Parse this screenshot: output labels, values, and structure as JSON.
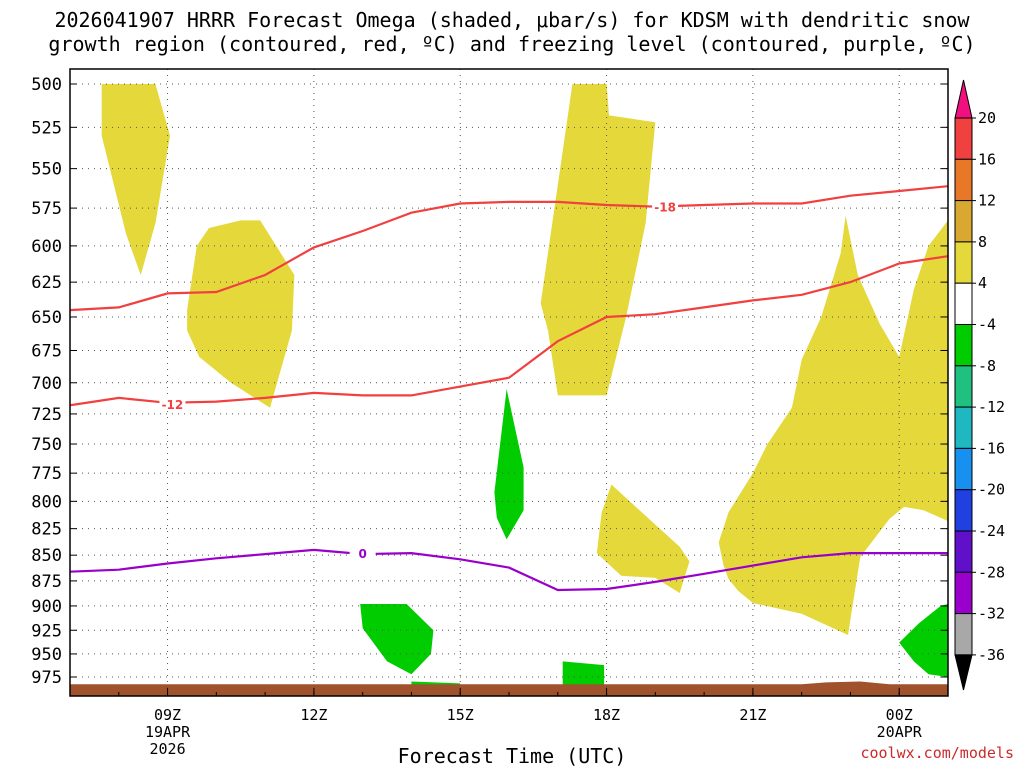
{
  "title": {
    "line1": "2026041907 HRRR Forecast Omega (shaded, μbar/s) for KDSM with dendritic snow",
    "line2": "growth region (contoured, red, ºC) and freezing level (contoured, purple, ºC)"
  },
  "credit": "coolwx.com/models",
  "colors": {
    "omega_pos": "#e5d83a",
    "omega_neg": "#00cc00",
    "dgz": "#f04040",
    "freezing": "#9900cc",
    "ground": "#a0522d"
  },
  "chart_data": {
    "type": "time-height",
    "xlabel": "Forecast Time (UTC)",
    "ylabel": "",
    "xlim": [
      7,
      25
    ],
    "ylim": [
      500,
      990
    ],
    "y_ticks": [
      500,
      525,
      550,
      575,
      600,
      625,
      650,
      675,
      700,
      725,
      750,
      775,
      800,
      825,
      850,
      875,
      900,
      925,
      950,
      975
    ],
    "y_tick_labels": [
      "500",
      "525",
      "550",
      "575",
      "600",
      "625",
      "650",
      "675",
      "700",
      "725",
      "750",
      "775",
      "800",
      "825",
      "850",
      "875",
      "900",
      "925",
      "950",
      "975"
    ],
    "x_ticks": [
      {
        "x": 9,
        "lines": [
          "09Z",
          "19APR",
          "2026"
        ]
      },
      {
        "x": 12,
        "lines": [
          "12Z"
        ]
      },
      {
        "x": 15,
        "lines": [
          "15Z"
        ]
      },
      {
        "x": 18,
        "lines": [
          "18Z"
        ]
      },
      {
        "x": 21,
        "lines": [
          "21Z"
        ]
      },
      {
        "x": 24,
        "lines": [
          "00Z",
          "20APR"
        ]
      }
    ],
    "grid": true,
    "contours": [
      {
        "label": "-12",
        "label_at": [
          9.1,
          717
        ],
        "points": [
          [
            7,
            718
          ],
          [
            8,
            712
          ],
          [
            9,
            716
          ],
          [
            10,
            715
          ],
          [
            11,
            712
          ],
          [
            12,
            708
          ],
          [
            13,
            710
          ],
          [
            14,
            710
          ],
          [
            15,
            703
          ],
          [
            16,
            696
          ],
          [
            17,
            668
          ],
          [
            18,
            650
          ],
          [
            19,
            648
          ],
          [
            20,
            643
          ],
          [
            21,
            638
          ],
          [
            22,
            634
          ],
          [
            23,
            625
          ],
          [
            24,
            612
          ],
          [
            25,
            607
          ]
        ]
      },
      {
        "label": "-18",
        "label_at": [
          19.2,
          574
        ],
        "points": [
          [
            7,
            645
          ],
          [
            8,
            643
          ],
          [
            9,
            633
          ],
          [
            10,
            632
          ],
          [
            11,
            620
          ],
          [
            12,
            601
          ],
          [
            13,
            590
          ],
          [
            14,
            578
          ],
          [
            15,
            572
          ],
          [
            16,
            571
          ],
          [
            17,
            571
          ],
          [
            18,
            573
          ],
          [
            19,
            574
          ],
          [
            20,
            573
          ],
          [
            21,
            572
          ],
          [
            22,
            572
          ],
          [
            23,
            567
          ],
          [
            24,
            564
          ],
          [
            25,
            561
          ]
        ]
      },
      {
        "label": "0",
        "label_at": [
          13.0,
          848
        ],
        "points": [
          [
            7,
            866
          ],
          [
            8,
            864
          ],
          [
            9,
            858
          ],
          [
            10,
            853
          ],
          [
            11,
            849
          ],
          [
            12,
            845
          ],
          [
            13,
            849
          ],
          [
            14,
            848
          ],
          [
            15,
            854
          ],
          [
            16,
            862
          ],
          [
            17,
            884
          ],
          [
            18,
            883
          ],
          [
            19,
            876
          ],
          [
            20,
            868
          ],
          [
            21,
            860
          ],
          [
            22,
            852
          ],
          [
            23,
            848
          ],
          [
            24,
            848
          ],
          [
            25,
            848
          ]
        ]
      }
    ],
    "omega_regions": [
      {
        "sign": "positive",
        "points": [
          [
            7.65,
            500
          ],
          [
            8.75,
            500
          ],
          [
            9.05,
            530
          ],
          [
            8.75,
            585
          ],
          [
            8.45,
            620
          ],
          [
            8.15,
            592
          ],
          [
            7.65,
            530
          ]
        ]
      },
      {
        "sign": "positive",
        "points": [
          [
            9.4,
            645
          ],
          [
            9.6,
            600
          ],
          [
            9.85,
            588
          ],
          [
            10.5,
            583
          ],
          [
            10.9,
            583
          ],
          [
            11.6,
            620
          ],
          [
            11.55,
            660
          ],
          [
            11.1,
            720
          ],
          [
            10.3,
            700
          ],
          [
            9.65,
            680
          ],
          [
            9.4,
            660
          ]
        ]
      },
      {
        "sign": "positive",
        "points": [
          [
            16.65,
            640
          ],
          [
            17.3,
            500
          ],
          [
            18.0,
            500
          ],
          [
            18.05,
            518
          ],
          [
            19.0,
            522
          ],
          [
            18.8,
            585
          ],
          [
            18.4,
            650
          ],
          [
            18.0,
            710
          ],
          [
            17.0,
            710
          ],
          [
            16.8,
            660
          ]
        ]
      },
      {
        "sign": "positive",
        "points": [
          [
            17.8,
            848
          ],
          [
            17.9,
            810
          ],
          [
            18.1,
            785
          ],
          [
            18.6,
            805
          ],
          [
            19.5,
            842
          ],
          [
            19.7,
            856
          ],
          [
            19.5,
            887
          ],
          [
            19.0,
            872
          ],
          [
            18.3,
            870
          ]
        ]
      },
      {
        "sign": "positive",
        "points": [
          [
            20.3,
            838
          ],
          [
            20.5,
            810
          ],
          [
            21.0,
            775
          ],
          [
            21.3,
            750
          ],
          [
            21.8,
            720
          ],
          [
            22.0,
            682
          ],
          [
            22.4,
            650
          ],
          [
            22.8,
            605
          ],
          [
            22.9,
            580
          ],
          [
            23.15,
            620
          ],
          [
            23.6,
            655
          ],
          [
            24.0,
            680
          ],
          [
            24.3,
            630
          ],
          [
            24.6,
            600
          ],
          [
            25.0,
            583
          ],
          [
            25.0,
            818
          ],
          [
            24.5,
            808
          ],
          [
            24.1,
            805
          ],
          [
            23.8,
            816
          ],
          [
            23.2,
            852
          ],
          [
            22.95,
            930
          ],
          [
            22.0,
            908
          ],
          [
            21.0,
            897
          ],
          [
            20.7,
            885
          ],
          [
            20.5,
            873
          ],
          [
            20.4,
            860
          ]
        ]
      },
      {
        "sign": "negative",
        "points": [
          [
            15.7,
            792
          ],
          [
            15.95,
            705
          ],
          [
            16.3,
            770
          ],
          [
            16.3,
            808
          ],
          [
            15.95,
            835
          ],
          [
            15.75,
            815
          ]
        ]
      },
      {
        "sign": "negative",
        "points": [
          [
            12.95,
            898
          ],
          [
            13.9,
            898
          ],
          [
            14.45,
            925
          ],
          [
            14.4,
            950
          ],
          [
            14.0,
            972
          ],
          [
            13.5,
            958
          ],
          [
            13.0,
            923
          ]
        ]
      },
      {
        "sign": "negative",
        "points": [
          [
            17.1,
            958
          ],
          [
            17.95,
            962
          ],
          [
            17.95,
            990
          ],
          [
            17.1,
            990
          ]
        ]
      },
      {
        "sign": "negative",
        "points": [
          [
            14.0,
            980
          ],
          [
            15.0,
            982
          ],
          [
            15.0,
            985
          ],
          [
            14.0,
            985
          ]
        ]
      },
      {
        "sign": "negative",
        "points": [
          [
            24.0,
            938
          ],
          [
            24.4,
            918
          ],
          [
            24.85,
            900
          ],
          [
            25.0,
            898
          ],
          [
            25.0,
            975
          ],
          [
            24.6,
            972
          ],
          [
            24.3,
            958
          ]
        ]
      }
    ],
    "ground": {
      "top": 983,
      "points": [
        [
          7,
          983
        ],
        [
          22.0,
          983
        ],
        [
          22.5,
          981
        ],
        [
          23.2,
          980
        ],
        [
          23.8,
          983
        ],
        [
          25,
          983
        ]
      ]
    },
    "colorbar": {
      "levels": [
        "20",
        "16",
        "12",
        "8",
        "4",
        "-4",
        "-8",
        "-12",
        "-16",
        "-20",
        "-24",
        "-28",
        "-32",
        "-36"
      ],
      "segments": [
        "#f01080",
        "#f04040",
        "#e87828",
        "#d8a830",
        "#e5d83a",
        "#ffffff",
        "#00cc00",
        "#20c080",
        "#20b8c0",
        "#1890f0",
        "#2040e0",
        "#6010c8",
        "#9900cc",
        "#a8a8a8",
        "#000000"
      ]
    }
  }
}
